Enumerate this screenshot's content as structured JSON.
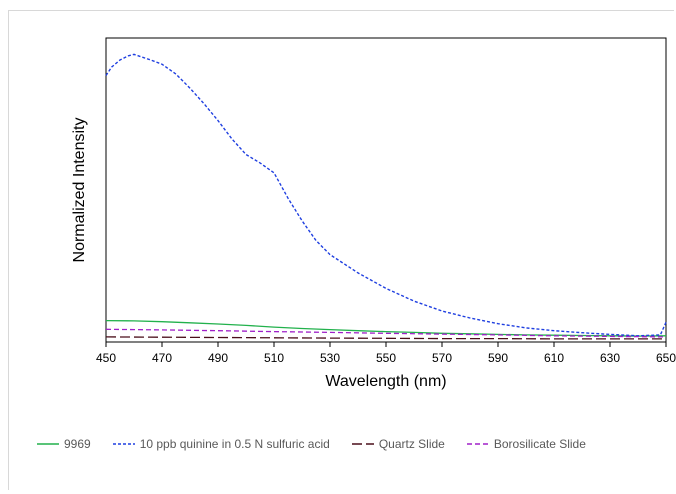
{
  "chart_data": {
    "type": "line",
    "title": "",
    "xlabel": "Wavelength (nm)",
    "ylabel": "Normalized Intensity",
    "xlim": [
      450,
      650
    ],
    "ylim": [
      0,
      1
    ],
    "xticks": [
      450,
      470,
      490,
      510,
      530,
      550,
      570,
      590,
      610,
      630,
      650
    ],
    "yticks_shown": false,
    "grid": false,
    "legend_position": "bottom",
    "series": [
      {
        "name": "9969",
        "color": "#22b14c",
        "dash": "solid",
        "x": [
          450,
          460,
          470,
          480,
          490,
          500,
          510,
          520,
          530,
          540,
          550,
          560,
          570,
          580,
          590,
          600,
          610,
          620,
          630,
          640,
          650
        ],
        "y": [
          0.076,
          0.075,
          0.072,
          0.068,
          0.064,
          0.059,
          0.053,
          0.048,
          0.044,
          0.04,
          0.037,
          0.034,
          0.031,
          0.029,
          0.027,
          0.025,
          0.024,
          0.023,
          0.022,
          0.021,
          0.022
        ]
      },
      {
        "name": "10 ppb quinine in 0.5 N sulfuric acid",
        "color": "#1f3fe0",
        "dash": "short-dash",
        "x": [
          450,
          452,
          455,
          458,
          460,
          463,
          466,
          470,
          475,
          480,
          485,
          490,
          495,
          500,
          505,
          510,
          515,
          520,
          525,
          530,
          540,
          550,
          560,
          570,
          580,
          590,
          600,
          610,
          620,
          630,
          640,
          648,
          650
        ],
        "y": [
          0.945,
          0.975,
          1.0,
          1.015,
          1.02,
          1.01,
          1.0,
          0.985,
          0.95,
          0.9,
          0.845,
          0.785,
          0.72,
          0.665,
          0.635,
          0.6,
          0.51,
          0.43,
          0.36,
          0.31,
          0.245,
          0.19,
          0.145,
          0.11,
          0.085,
          0.065,
          0.05,
          0.04,
          0.033,
          0.027,
          0.022,
          0.025,
          0.07
        ]
      },
      {
        "name": "Quartz Slide",
        "color": "#4a0f1a",
        "dash": "long-dash",
        "x": [
          450,
          470,
          490,
          510,
          530,
          550,
          570,
          590,
          610,
          630,
          650
        ],
        "y": [
          0.018,
          0.017,
          0.016,
          0.015,
          0.014,
          0.013,
          0.012,
          0.012,
          0.011,
          0.011,
          0.011
        ]
      },
      {
        "name": "Borosilicate Slide",
        "color": "#a020c8",
        "dash": "dash",
        "x": [
          450,
          470,
          490,
          510,
          530,
          550,
          570,
          590,
          610,
          630,
          650
        ],
        "y": [
          0.045,
          0.043,
          0.04,
          0.037,
          0.034,
          0.031,
          0.028,
          0.025,
          0.022,
          0.02,
          0.018
        ]
      }
    ]
  }
}
